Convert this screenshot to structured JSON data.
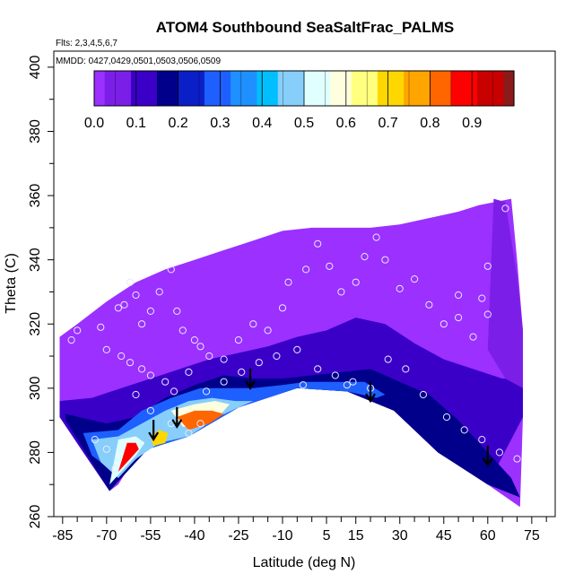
{
  "chart_data": {
    "type": "heatmap",
    "title": "ATOM4 Southbound SeaSaltFrac_PALMS",
    "flights_note": "Flts: 2,3,4,5,6,7",
    "dates_note": "MMDD: 0427,0429,0501,0503,0506,0509",
    "xlabel": "Latitude (deg N)",
    "ylabel": "Theta (C)",
    "xlim": [
      -88,
      83
    ],
    "ylim": [
      260,
      405
    ],
    "x_ticks": [
      -85,
      -70,
      -55,
      -40,
      -25,
      -10,
      5,
      15,
      30,
      45,
      60,
      75
    ],
    "y_ticks": [
      260,
      280,
      300,
      320,
      340,
      360,
      380,
      400
    ],
    "colorbar": {
      "ticks": [
        0.0,
        0.1,
        0.2,
        0.3,
        0.4,
        0.5,
        0.6,
        0.7,
        0.8,
        0.9
      ],
      "range": [
        0,
        1
      ],
      "colors": [
        "#9b30ff",
        "#7b1fe8",
        "#3a00c8",
        "#00008b",
        "#0a1fc8",
        "#1e5fff",
        "#1e90ff",
        "#00bfff",
        "#87cefa",
        "#e0ffff",
        "#ffffe0",
        "#ffff80",
        "#ffd700",
        "#ffa500",
        "#ff6600",
        "#ff0000",
        "#c80000",
        "#8b1a1a"
      ]
    },
    "upper_boundary": [
      [
        -86,
        316
      ],
      [
        -80,
        320
      ],
      [
        -70,
        327
      ],
      [
        -60,
        333
      ],
      [
        -50,
        337
      ],
      [
        -40,
        340
      ],
      [
        -30,
        343
      ],
      [
        -20,
        346
      ],
      [
        -10,
        349
      ],
      [
        0,
        350
      ],
      [
        10,
        350
      ],
      [
        20,
        350
      ],
      [
        30,
        351
      ],
      [
        40,
        353
      ],
      [
        50,
        355
      ],
      [
        57,
        357
      ],
      [
        68,
        359
      ],
      [
        70,
        340
      ],
      [
        72,
        318
      ],
      [
        72,
        297
      ]
    ],
    "lower_boundary": [
      [
        72,
        291
      ],
      [
        71,
        263
      ],
      [
        60,
        270
      ],
      [
        50,
        276
      ],
      [
        43,
        280
      ],
      [
        35,
        287
      ],
      [
        28,
        293
      ],
      [
        20,
        297
      ],
      [
        12,
        299
      ],
      [
        5,
        300
      ],
      [
        -5,
        300
      ],
      [
        -12,
        299
      ],
      [
        -18,
        297
      ],
      [
        -25,
        294
      ],
      [
        -32,
        291
      ],
      [
        -38,
        288
      ],
      [
        -42,
        285
      ],
      [
        -46,
        284
      ],
      [
        -52,
        283
      ],
      [
        -56,
        281
      ],
      [
        -62,
        276
      ],
      [
        -66,
        270
      ],
      [
        -69,
        268
      ],
      [
        -72,
        272
      ],
      [
        -78,
        280
      ],
      [
        -86,
        291
      ]
    ],
    "background_level": 0.0,
    "regions": [
      {
        "level": 0.1,
        "points": [
          [
            -86,
            296
          ],
          [
            -75,
            297
          ],
          [
            -65,
            300
          ],
          [
            -55,
            303
          ],
          [
            -45,
            306
          ],
          [
            -35,
            309
          ],
          [
            -25,
            311
          ],
          [
            -15,
            313
          ],
          [
            -5,
            316
          ],
          [
            5,
            318
          ],
          [
            15,
            322
          ],
          [
            25,
            320
          ],
          [
            35,
            314
          ],
          [
            45,
            309
          ],
          [
            55,
            306
          ],
          [
            65,
            303
          ],
          [
            72,
            303
          ],
          [
            72,
            291
          ],
          [
            60,
            270
          ],
          [
            43,
            280
          ],
          [
            28,
            293
          ],
          [
            12,
            299
          ],
          [
            -5,
            300
          ],
          [
            -25,
            294
          ],
          [
            -42,
            285
          ],
          [
            -56,
            281
          ],
          [
            -69,
            268
          ],
          [
            -86,
            291
          ]
        ]
      },
      {
        "level": 0.15,
        "points": [
          [
            -84,
            292
          ],
          [
            -70,
            289
          ],
          [
            -60,
            291
          ],
          [
            -50,
            297
          ],
          [
            -40,
            301
          ],
          [
            -30,
            304
          ],
          [
            -20,
            303
          ],
          [
            -10,
            303
          ],
          [
            0,
            304
          ],
          [
            10,
            305
          ],
          [
            20,
            306
          ],
          [
            30,
            302
          ],
          [
            40,
            298
          ],
          [
            50,
            290
          ],
          [
            60,
            280
          ],
          [
            68,
            272
          ],
          [
            71,
            266
          ],
          [
            60,
            270
          ],
          [
            43,
            280
          ],
          [
            28,
            293
          ],
          [
            12,
            299
          ],
          [
            -5,
            300
          ],
          [
            -25,
            294
          ],
          [
            -42,
            285
          ],
          [
            -56,
            281
          ],
          [
            -69,
            268
          ],
          [
            -84,
            290
          ]
        ]
      },
      {
        "level": 0.3,
        "points": [
          [
            -78,
            286
          ],
          [
            -66,
            287
          ],
          [
            -58,
            293
          ],
          [
            -48,
            297
          ],
          [
            -38,
            300
          ],
          [
            -28,
            300
          ],
          [
            -20,
            300
          ],
          [
            -10,
            301
          ],
          [
            -2,
            302
          ],
          [
            8,
            302
          ],
          [
            18,
            302
          ],
          [
            25,
            298
          ],
          [
            22,
            297
          ],
          [
            12,
            299
          ],
          [
            -5,
            300
          ],
          [
            -25,
            294
          ],
          [
            -42,
            285
          ],
          [
            -56,
            281
          ],
          [
            -66,
            273
          ],
          [
            -75,
            279
          ]
        ]
      },
      {
        "level": 0.45,
        "points": [
          [
            -75,
            284
          ],
          [
            -66,
            285
          ],
          [
            -58,
            289
          ],
          [
            -50,
            293
          ],
          [
            -42,
            296
          ],
          [
            -34,
            297
          ],
          [
            -26,
            296
          ],
          [
            -20,
            296
          ],
          [
            -25,
            294
          ],
          [
            -32,
            291
          ],
          [
            -42,
            285
          ],
          [
            -52,
            283
          ],
          [
            -60,
            278
          ],
          [
            -66,
            272
          ],
          [
            -72,
            277
          ]
        ]
      },
      {
        "level": 0.6,
        "points": [
          [
            -48,
            293
          ],
          [
            -40,
            295
          ],
          [
            -33,
            296
          ],
          [
            -28,
            295
          ],
          [
            -32,
            291
          ],
          [
            -38,
            288
          ],
          [
            -44,
            288
          ]
        ]
      },
      {
        "level": 0.8,
        "points": [
          [
            -46,
            291
          ],
          [
            -40,
            293
          ],
          [
            -34,
            293
          ],
          [
            -30,
            292
          ],
          [
            -35,
            289
          ],
          [
            -42,
            287
          ]
        ]
      },
      {
        "level": 0.55,
        "points": [
          [
            -66,
            284
          ],
          [
            -60,
            285
          ],
          [
            -57,
            283
          ],
          [
            -60,
            279
          ],
          [
            -65,
            274
          ],
          [
            -69,
            270
          ]
        ]
      },
      {
        "level": 0.9,
        "points": [
          [
            -63,
            283
          ],
          [
            -60,
            283
          ],
          [
            -59,
            281
          ],
          [
            -62,
            278
          ],
          [
            -66,
            274
          ]
        ]
      },
      {
        "level": 0.7,
        "points": [
          [
            -55,
            285
          ],
          [
            -52,
            287
          ],
          [
            -49,
            286
          ],
          [
            -50,
            283
          ],
          [
            -54,
            282
          ]
        ]
      },
      {
        "level": 0.05,
        "points": [
          [
            62,
            359
          ],
          [
            66,
            358
          ],
          [
            70,
            335
          ],
          [
            72,
            318
          ],
          [
            72,
            300
          ],
          [
            66,
            303
          ],
          [
            60,
            312
          ]
        ]
      }
    ],
    "points": [
      [
        -80,
        318
      ],
      [
        -72,
        319
      ],
      [
        -66,
        325
      ],
      [
        -64,
        326
      ],
      [
        -62,
        333
      ],
      [
        -60,
        329
      ],
      [
        -58,
        320
      ],
      [
        -55,
        324
      ],
      [
        -52,
        330
      ],
      [
        -48,
        337
      ],
      [
        -46,
        324
      ],
      [
        -44,
        318
      ],
      [
        -40,
        315
      ],
      [
        -38,
        313
      ],
      [
        -35,
        310
      ],
      [
        -30,
        309
      ],
      [
        -25,
        315
      ],
      [
        -20,
        320
      ],
      [
        -15,
        318
      ],
      [
        -10,
        325
      ],
      [
        -8,
        333
      ],
      [
        -2,
        337
      ],
      [
        2,
        345
      ],
      [
        6,
        338
      ],
      [
        10,
        330
      ],
      [
        15,
        333
      ],
      [
        18,
        341
      ],
      [
        22,
        347
      ],
      [
        25,
        340
      ],
      [
        30,
        331
      ],
      [
        35,
        334
      ],
      [
        40,
        326
      ],
      [
        45,
        320
      ],
      [
        50,
        322
      ],
      [
        55,
        316
      ],
      [
        58,
        328
      ],
      [
        60,
        323
      ],
      [
        -82,
        315
      ],
      [
        -70,
        312
      ],
      [
        -65,
        310
      ],
      [
        -62,
        308
      ],
      [
        -58,
        306
      ],
      [
        -55,
        304
      ],
      [
        -50,
        302
      ],
      [
        -47,
        299
      ],
      [
        -42,
        305
      ],
      [
        -36,
        299
      ],
      [
        -30,
        302
      ],
      [
        -24,
        305
      ],
      [
        -18,
        308
      ],
      [
        -12,
        310
      ],
      [
        -5,
        312
      ],
      [
        2,
        306
      ],
      [
        8,
        304
      ],
      [
        14,
        302
      ],
      [
        20,
        300
      ],
      [
        26,
        309
      ],
      [
        32,
        306
      ],
      [
        38,
        298
      ],
      [
        46,
        291
      ],
      [
        52,
        287
      ],
      [
        58,
        284
      ],
      [
        64,
        280
      ],
      [
        70,
        278
      ],
      [
        -60,
        298
      ],
      [
        -55,
        293
      ],
      [
        -48,
        289
      ],
      [
        -42,
        286
      ],
      [
        -38,
        289
      ],
      [
        -74,
        284
      ],
      [
        -70,
        281
      ],
      [
        -67,
        275
      ],
      [
        12,
        301
      ],
      [
        -3,
        301
      ],
      [
        50,
        329
      ],
      [
        60,
        338
      ],
      [
        66,
        356
      ]
    ],
    "arrows": [
      [
        -54,
        284
      ],
      [
        -46,
        288
      ],
      [
        -21,
        300
      ],
      [
        20,
        296
      ],
      [
        60,
        276
      ]
    ]
  }
}
